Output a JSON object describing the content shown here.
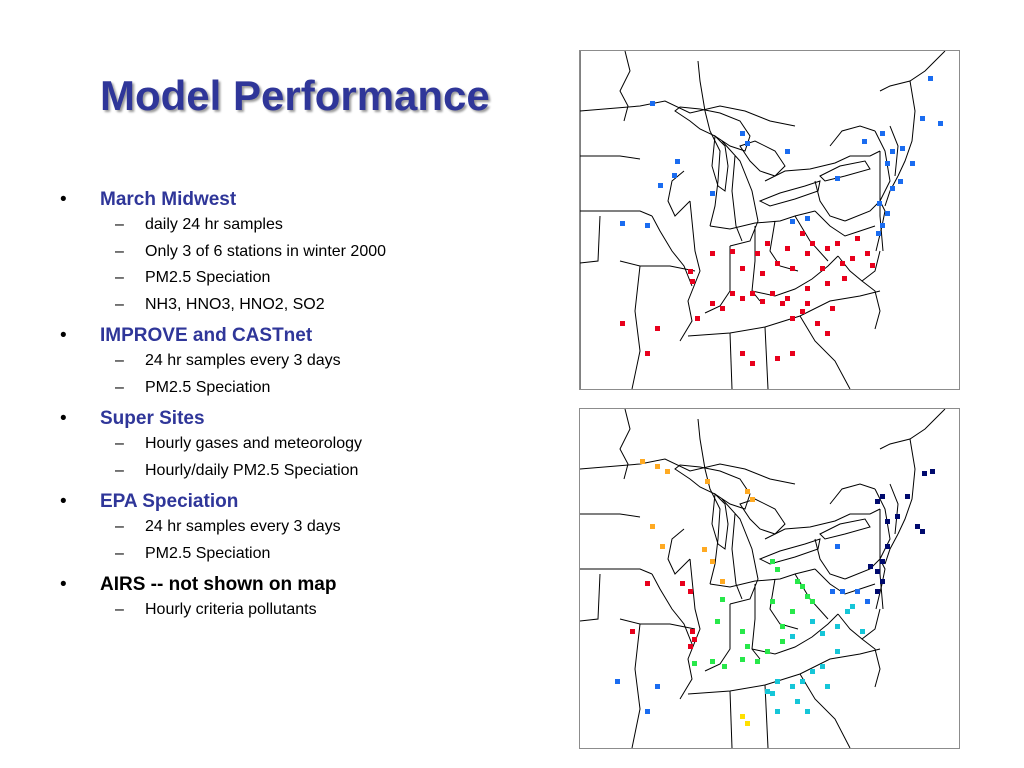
{
  "slide": {
    "title": "Model Performance",
    "bullets": [
      {
        "text": "March Midwest",
        "sub": [
          "daily 24 hr samples",
          "Only 3 of 6 stations in winter 2000",
          "PM2.5 Speciation",
          "NH3, HNO3, HNO2, SO2"
        ]
      },
      {
        "text": "IMPROVE and CASTnet",
        "sub": [
          "24 hr samples every 3 days",
          "PM2.5 Speciation"
        ]
      },
      {
        "text": "Super Sites",
        "sub": [
          "Hourly gases and meteorology",
          "Hourly/daily PM2.5 Speciation"
        ]
      },
      {
        "text": "EPA Speciation",
        "sub": [
          "24 hr samples every 3 days",
          "PM2.5 Speciation"
        ]
      },
      {
        "text": "AIRS -- not shown on map",
        "sub": [
          "Hourly criteria pollutants"
        ]
      }
    ]
  },
  "colors": {
    "title": "#2f3699",
    "station_red": "#e8001c",
    "station_blue": "#1a6cf0",
    "station_navy": "#000a6e",
    "station_orange": "#ffaa22",
    "station_yellow": "#ffe000",
    "station_green": "#27e84a",
    "station_cyan": "#15c6d8",
    "boundary": "#000000"
  }
}
